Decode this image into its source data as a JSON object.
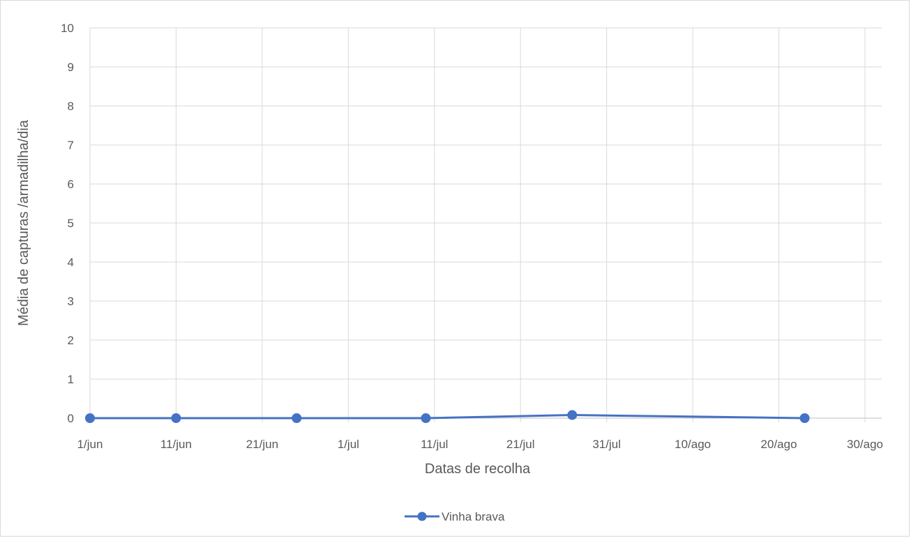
{
  "chart_data": {
    "type": "line",
    "xlabel": "Datas de recolha",
    "ylabel": "Média de capturas /armadilha/dia",
    "x_tick_labels": [
      "1/jun",
      "11/jun",
      "21/jun",
      "1/jul",
      "11/jul",
      "21/jul",
      "31/jul",
      "10/ago",
      "20/ago",
      "30/ago"
    ],
    "x_range": [
      "1/jun",
      "30/ago"
    ],
    "ylim": [
      0,
      10
    ],
    "y_ticks": [
      0,
      1,
      2,
      3,
      4,
      5,
      6,
      7,
      8,
      9,
      10
    ],
    "grid": true,
    "legend_position": "bottom",
    "series": [
      {
        "name": "Vinha brava",
        "color": "#4472c4",
        "marker": "circle",
        "points": [
          {
            "x": "1/jun",
            "y": 0
          },
          {
            "x": "11/jun",
            "y": 0
          },
          {
            "x": "25/jun",
            "y": 0
          },
          {
            "x": "10/jul",
            "y": 0
          },
          {
            "x": "27/jul",
            "y": 0.08
          },
          {
            "x": "23/ago",
            "y": 0
          }
        ]
      }
    ]
  }
}
